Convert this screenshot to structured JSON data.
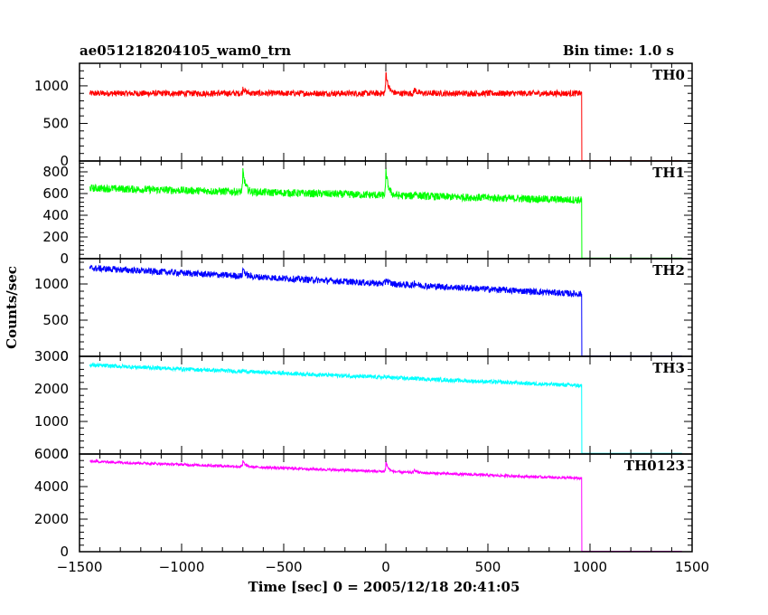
{
  "header": {
    "title": "ae051218204105_wam0_trn",
    "bin_time": "Bin time: 1.0 s"
  },
  "axes": {
    "xlabel": "Time [sec] 0 = 2005/12/18 20:41:05",
    "ylabel": "Counts/sec"
  },
  "chart_data": {
    "type": "line",
    "title": "ae051218204105_wam0_trn",
    "xlabel": "Time [sec] 0 = 2005/12/18 20:41:05",
    "ylabel": "Counts/sec",
    "xlim": [
      -1500,
      1500
    ],
    "x_ticks": [
      "−1500",
      "−1000",
      "−500",
      "0",
      "500",
      "1000",
      "1500"
    ],
    "x_tick_values": [
      -1500,
      -1000,
      -500,
      0,
      500,
      1000,
      1500
    ],
    "data_range_x": [
      -1450,
      1450
    ],
    "drop_time": 960,
    "spike_times": [
      -700,
      0,
      140
    ],
    "panels": [
      {
        "name": "TH0",
        "color": "#ff0000",
        "ylim": [
          0,
          1300
        ],
        "y_ticks": [
          0,
          500,
          1000
        ],
        "y_tick_labels": [
          "0",
          "500",
          "1000"
        ],
        "start_level": 900,
        "end_level": 900,
        "noise": 40,
        "spike_heights": [
          80,
          300,
          60
        ],
        "after_drop_level": 5
      },
      {
        "name": "TH1",
        "color": "#00ff00",
        "ylim": [
          0,
          900
        ],
        "y_ticks": [
          0,
          200,
          400,
          600,
          800
        ],
        "y_tick_labels": [
          "0",
          "200",
          "400",
          "600",
          "800"
        ],
        "start_level": 650,
        "end_level": 540,
        "noise": 35,
        "spike_heights": [
          200,
          240,
          40
        ],
        "after_drop_level": 5
      },
      {
        "name": "TH2",
        "color": "#0000ff",
        "ylim": [
          0,
          1350
        ],
        "y_ticks": [
          0,
          500,
          1000
        ],
        "y_tick_labels": [
          "0",
          "500",
          "1000"
        ],
        "start_level": 1220,
        "end_level": 860,
        "noise": 45,
        "spike_heights": [
          120,
          80,
          40
        ],
        "after_drop_level": 5
      },
      {
        "name": "TH3",
        "color": "#00ffff",
        "ylim": [
          0,
          3000
        ],
        "y_ticks": [
          0,
          1000,
          2000,
          3000
        ],
        "y_tick_labels": [
          "0",
          "1000",
          "2000",
          "3000"
        ],
        "start_level": 2730,
        "end_level": 2100,
        "noise": 60,
        "spike_heights": [
          40,
          30,
          20
        ],
        "after_drop_level": 20
      },
      {
        "name": "TH0123",
        "color": "#ff00ff",
        "ylim": [
          0,
          6000
        ],
        "y_ticks": [
          0,
          2000,
          4000,
          6000
        ],
        "y_tick_labels": [
          "0",
          "2000",
          "4000",
          "6000"
        ],
        "start_level": 5550,
        "end_level": 4500,
        "noise": 80,
        "spike_heights": [
          350,
          650,
          200
        ],
        "after_drop_level": 30
      }
    ]
  }
}
